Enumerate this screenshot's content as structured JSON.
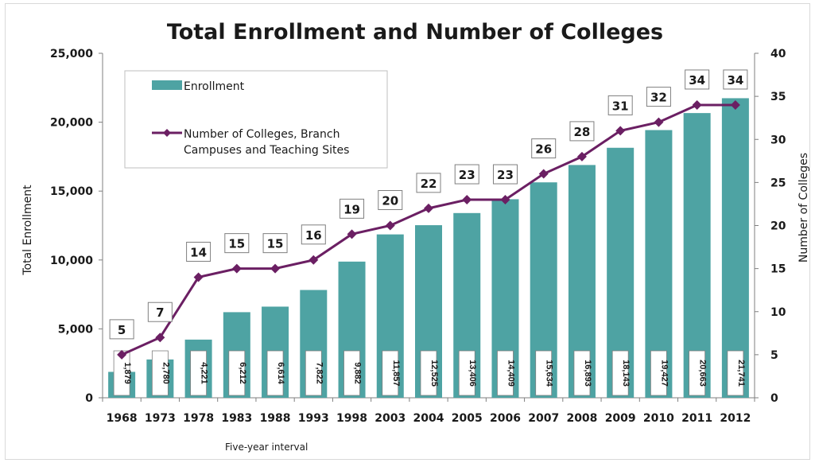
{
  "chart_data": {
    "type": "bar",
    "title": "Total Enrollment and Number of Colleges",
    "categories": [
      "1968",
      "1973",
      "1978",
      "1983",
      "1988",
      "1993",
      "1998",
      "2003",
      "2004",
      "2005",
      "2006",
      "2007",
      "2008",
      "2009",
      "2010",
      "2011",
      "2012"
    ],
    "series": [
      {
        "name": "Enrollment",
        "type": "bar",
        "axis": "left",
        "values": [
          1879,
          2780,
          4221,
          6212,
          6614,
          7822,
          9882,
          11857,
          12525,
          13406,
          14409,
          15634,
          16893,
          18143,
          19427,
          20663,
          21741
        ],
        "labels": [
          "1,879",
          "2,780",
          "4,221",
          "6,212",
          "6,614",
          "7,822",
          "9,882",
          "11,857",
          "12,525",
          "13,406",
          "14,409",
          "15,634",
          "16,893",
          "18,143",
          "19,427",
          "20,663",
          "21,741"
        ]
      },
      {
        "name": "Number of Colleges, Branch Campuses and Teaching Sites",
        "name_lines": [
          "Number of Colleges, Branch",
          "Campuses and Teaching Sites"
        ],
        "type": "line",
        "axis": "right",
        "values": [
          5,
          7,
          14,
          15,
          15,
          16,
          19,
          20,
          22,
          23,
          23,
          26,
          28,
          31,
          32,
          34,
          34
        ]
      }
    ],
    "ylabel": "Total Enrollment",
    "y2label": "Number of Colleges",
    "xnote": "Five-year interval",
    "ylim": [
      0,
      25000
    ],
    "yticks": [
      0,
      5000,
      10000,
      15000,
      20000,
      25000
    ],
    "ytick_labels": [
      "0",
      "5,000",
      "10,000",
      "15,000",
      "20,000",
      "25,000"
    ],
    "y2lim": [
      0,
      40
    ],
    "y2ticks": [
      0,
      5,
      10,
      15,
      20,
      25,
      30,
      35,
      40
    ],
    "y2tick_labels": [
      "0",
      "5",
      "10",
      "15",
      "20",
      "25",
      "30",
      "35",
      "40"
    ],
    "legend_position": "top-left",
    "grid": false
  },
  "colors": {
    "bar": "#4ea3a3",
    "line": "#6b1f63",
    "axis": "#7f7f7f",
    "label_border": "#7f7f7f"
  }
}
